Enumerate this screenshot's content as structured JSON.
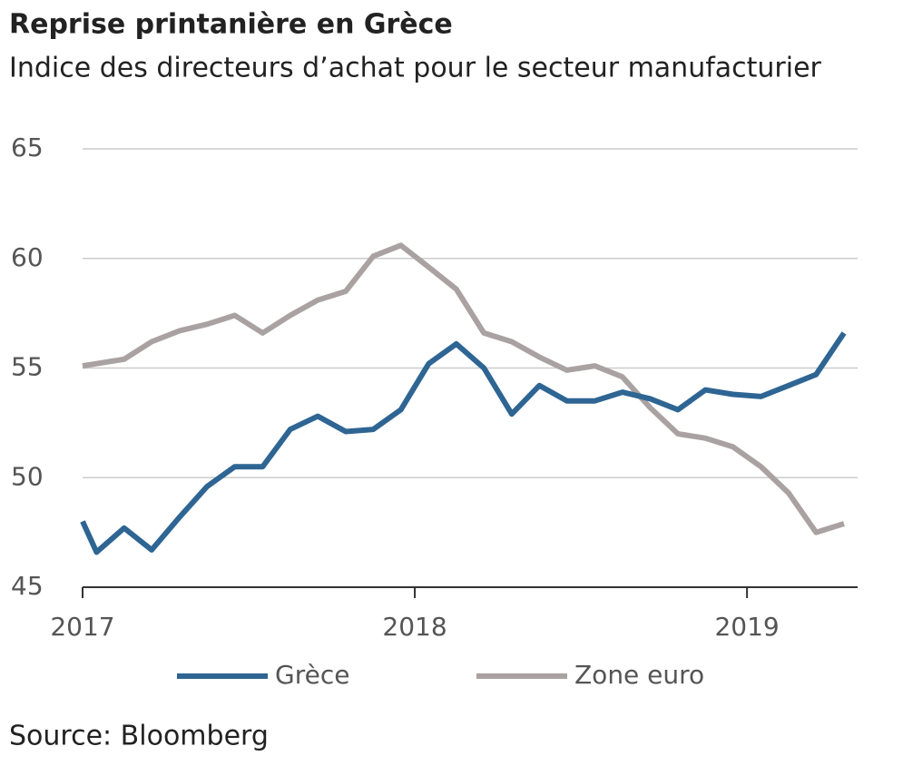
{
  "chart_data": {
    "type": "line",
    "title": "Reprise printanière en Grèce",
    "subtitle": "Indice des directeurs d’achat pour le secteur manufacturier",
    "source": "Source: Bloomberg",
    "x": [
      2017.0,
      2017.042,
      2017.125,
      2017.208,
      2017.292,
      2017.375,
      2017.458,
      2017.542,
      2017.625,
      2017.708,
      2017.792,
      2017.875,
      2017.958,
      2018.042,
      2018.125,
      2018.208,
      2018.292,
      2018.375,
      2018.458,
      2018.542,
      2018.625,
      2018.708,
      2018.792,
      2018.875,
      2018.958,
      2019.042,
      2019.125,
      2019.208,
      2019.292
    ],
    "series": [
      {
        "name": "Grèce",
        "color": "#2e6593",
        "values": [
          48.0,
          46.6,
          47.7,
          46.7,
          48.2,
          49.6,
          50.5,
          50.5,
          52.2,
          52.8,
          52.1,
          52.2,
          53.1,
          55.2,
          56.1,
          55.0,
          52.9,
          54.2,
          53.5,
          53.5,
          53.9,
          53.6,
          53.1,
          54.0,
          53.8,
          53.7,
          54.2,
          54.7,
          56.6
        ]
      },
      {
        "name": "Zone euro",
        "color": "#aaa2a2",
        "values": [
          55.1,
          55.2,
          55.4,
          56.2,
          56.7,
          57.0,
          57.4,
          56.6,
          57.4,
          58.1,
          58.5,
          60.1,
          60.6,
          59.6,
          58.6,
          56.6,
          56.2,
          55.5,
          54.9,
          55.1,
          54.6,
          53.2,
          52.0,
          51.8,
          51.4,
          50.5,
          49.3,
          47.5,
          47.9
        ]
      }
    ],
    "xlim": [
      2017,
      2019.333
    ],
    "xticks": [
      2017,
      2018,
      2019
    ],
    "ylim": [
      45,
      65
    ],
    "yticks": [
      45,
      50,
      55,
      60,
      65
    ],
    "grid": true
  }
}
